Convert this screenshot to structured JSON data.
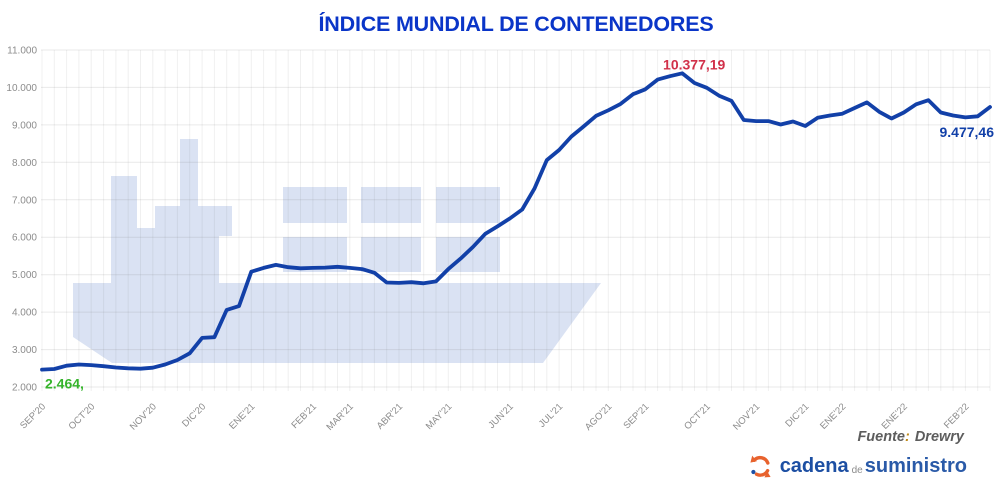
{
  "title": "ÍNDICE MUNDIAL DE CONTENEDORES",
  "source": {
    "label": "Fuente",
    "separator": ":",
    "name": "Drewry"
  },
  "logo": {
    "word1": "cadena",
    "word2": "de",
    "word3": "suministro"
  },
  "colors": {
    "title": "#0a35c8",
    "line": "#1240a8",
    "watermark": "#dae2f3",
    "axis_text": "#8c8c8c",
    "annotation_start": "#35b42b",
    "annotation_peak": "#d13049",
    "annotation_end": "#1240a8",
    "logo_orange": "#e8622d",
    "logo_blue": "#1d4fa3"
  },
  "chart_data": {
    "type": "line",
    "title": "ÍNDICE MUNDIAL DE CONTENEDORES",
    "xlabel": "",
    "ylabel": "",
    "grid": true,
    "ylim": [
      2000,
      11000
    ],
    "y_tick_step": 1000,
    "y_tick_labels": [
      "2.000",
      "3.000",
      "4.000",
      "5.000",
      "6.000",
      "7.000",
      "8.000",
      "9.000",
      "10.000",
      "11.000"
    ],
    "weeks_total": 78,
    "x_ticks": [
      {
        "label": "SEP'20",
        "week": 0
      },
      {
        "label": "OCT'20",
        "week": 4
      },
      {
        "label": "NOV'20",
        "week": 9
      },
      {
        "label": "DIC'20",
        "week": 13
      },
      {
        "label": "ENE'21",
        "week": 17
      },
      {
        "label": "FEB'21",
        "week": 22
      },
      {
        "label": "MAR'21",
        "week": 25
      },
      {
        "label": "ABR'21",
        "week": 29
      },
      {
        "label": "MAY'21",
        "week": 33
      },
      {
        "label": "JUN'21",
        "week": 38
      },
      {
        "label": "JUL'21",
        "week": 42
      },
      {
        "label": "AGO'21",
        "week": 46
      },
      {
        "label": "SEP'21",
        "week": 49
      },
      {
        "label": "OCT'21",
        "week": 54
      },
      {
        "label": "NOV'21",
        "week": 58
      },
      {
        "label": "DIC'21",
        "week": 62
      },
      {
        "label": "ENE'22",
        "week": 65
      },
      {
        "label": "ENE'22",
        "week": 70
      },
      {
        "label": "FEB'22",
        "week": 75
      }
    ],
    "values": [
      2464,
      2480,
      2570,
      2600,
      2585,
      2555,
      2520,
      2500,
      2490,
      2515,
      2600,
      2720,
      2900,
      3310,
      3330,
      4060,
      4160,
      5080,
      5180,
      5260,
      5200,
      5170,
      5180,
      5190,
      5210,
      5180,
      5150,
      5050,
      4790,
      4780,
      4800,
      4770,
      4820,
      5150,
      5430,
      5740,
      6090,
      6290,
      6500,
      6740,
      7300,
      8060,
      8330,
      8690,
      8960,
      9240,
      9390,
      9560,
      9820,
      9950,
      10210,
      10300,
      10377.19,
      10120,
      9990,
      9780,
      9640,
      9130,
      9100,
      9100,
      9010,
      9090,
      8970,
      9190,
      9250,
      9300,
      9450,
      9600,
      9350,
      9170,
      9330,
      9550,
      9660,
      9330,
      9250,
      9200,
      9230,
      9477.46
    ],
    "annotations": [
      {
        "id": "start",
        "week": 0,
        "value": 2464,
        "text": "2.464,",
        "color": "#35b42b"
      },
      {
        "id": "peak",
        "week": 52,
        "value": 10377.19,
        "text": "10.377,19",
        "color": "#d13049"
      },
      {
        "id": "end",
        "week": 77,
        "value": 9477.46,
        "text": "9.477,46",
        "color": "#1240a8"
      }
    ],
    "legend": null
  }
}
